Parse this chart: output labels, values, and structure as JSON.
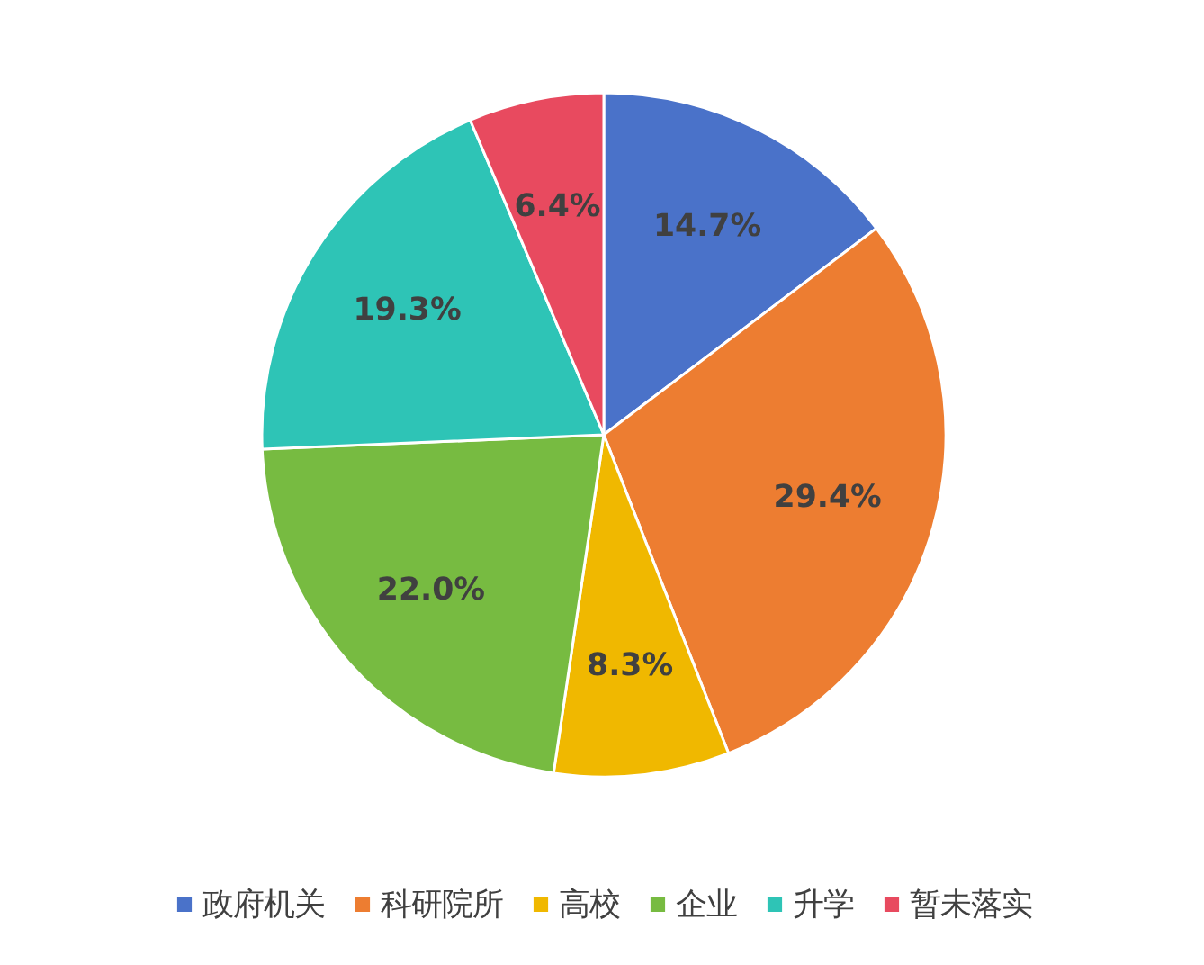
{
  "chart_data": {
    "type": "pie",
    "categories": [
      "政府机关",
      "科研院所",
      "高校",
      "企业",
      "升学",
      "暂未落实"
    ],
    "values": [
      14.7,
      29.4,
      8.3,
      22.0,
      19.3,
      6.4
    ],
    "colors": [
      "#4a72c9",
      "#ed7d31",
      "#f0b800",
      "#77bb41",
      "#2ec4b6",
      "#e84a5f"
    ],
    "value_labels": [
      "14.7%",
      "29.4%",
      "8.3%",
      "22.0%",
      "19.3%",
      "6.4%"
    ],
    "legend": "bottom"
  }
}
